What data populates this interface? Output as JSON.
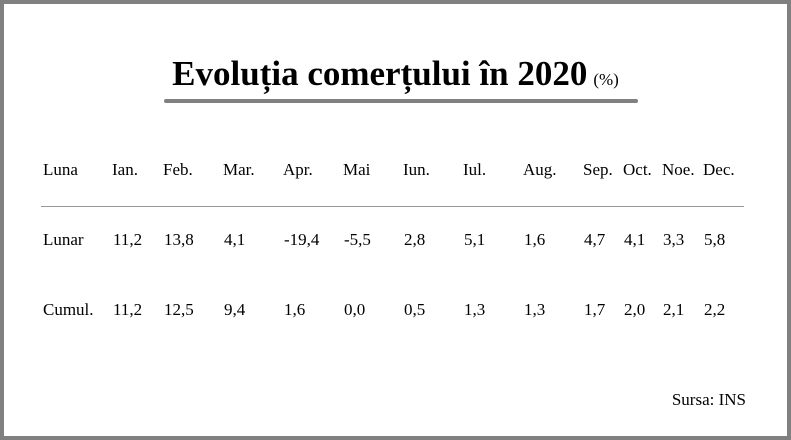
{
  "title": "Evoluția comerțului în 2020",
  "unit": "(%)",
  "table": {
    "header": [
      "Luna",
      "Ian.",
      "Feb.",
      "Mar.",
      "Apr.",
      "Mai",
      "Iun.",
      "Iul.",
      "Aug.",
      "Sep.",
      "Oct.",
      "Noe.",
      "Dec."
    ],
    "rows": [
      [
        "Lunar",
        "11,2",
        "13,8",
        "4,1",
        "-19,4",
        "-5,5",
        "2,8",
        "5,1",
        "1,6",
        "4,7",
        "4,1",
        "3,3",
        "5,8"
      ],
      [
        "Cumul.",
        "11,2",
        "12,5",
        "9,4",
        "1,6",
        "0,0",
        "0,5",
        "1,3",
        "1,3",
        "1,7",
        "2,0",
        "2,1",
        "2,2"
      ]
    ]
  },
  "source": "Sursa: INS"
}
